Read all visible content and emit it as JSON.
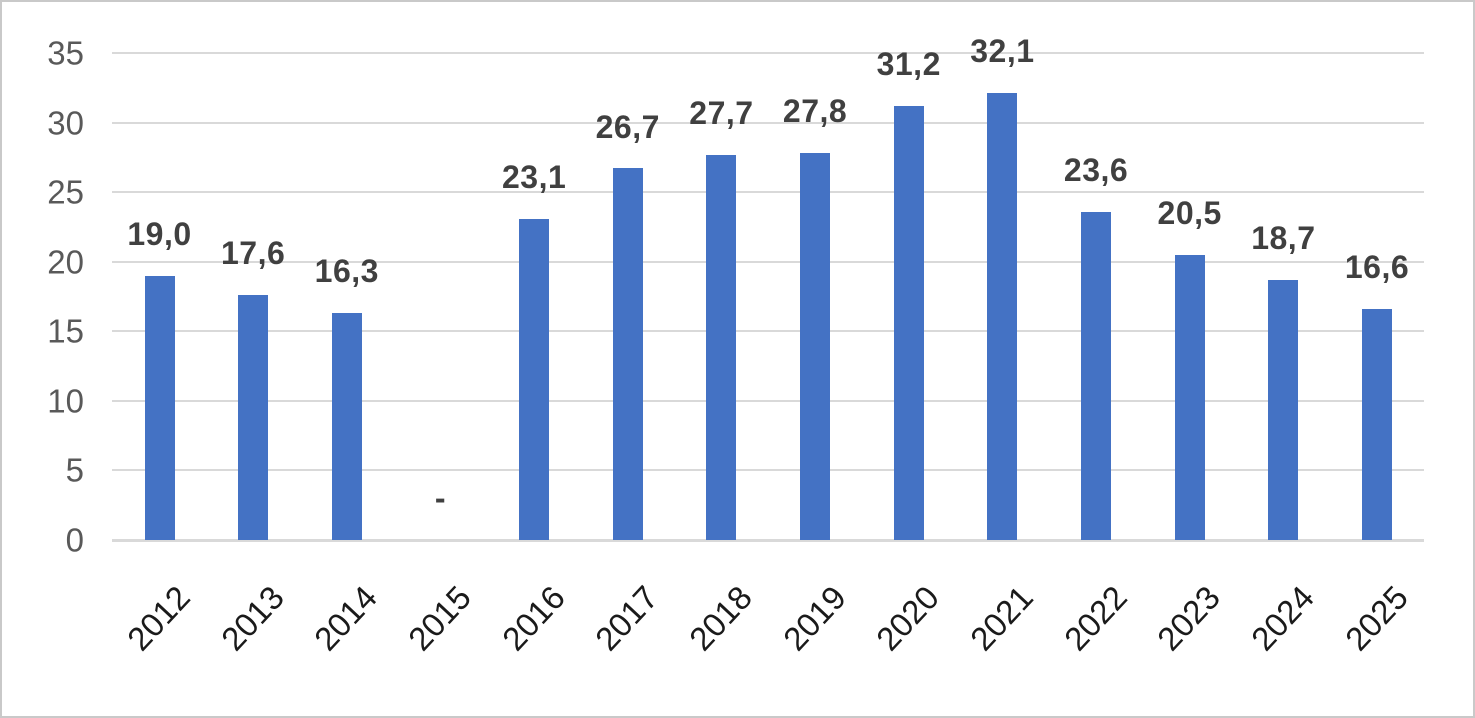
{
  "chart_data": {
    "type": "bar",
    "title": "",
    "xlabel": "",
    "ylabel": "",
    "categories": [
      "2012",
      "2013",
      "2014",
      "2015",
      "2016",
      "2017",
      "2018",
      "2019",
      "2020",
      "2021",
      "2022",
      "2023",
      "2024",
      "2025"
    ],
    "values": [
      19.0,
      17.6,
      16.3,
      null,
      23.1,
      26.7,
      27.7,
      27.8,
      31.2,
      32.1,
      23.6,
      20.5,
      18.7,
      16.6
    ],
    "data_labels": [
      "19,0",
      "17,6",
      "16,3",
      "-",
      "23,1",
      "26,7",
      "27,7",
      "27,8",
      "31,2",
      "32,1",
      "23,6",
      "20,5",
      "18,7",
      "16,6"
    ],
    "decimal_separator": ",",
    "y_ticks": [
      0,
      5,
      10,
      15,
      20,
      25,
      30,
      35
    ],
    "ylim": [
      0,
      35
    ],
    "grid": true,
    "legend_position": "none",
    "colors": {
      "bar": "#4472C4",
      "gridline": "#D9D9D9",
      "axis_text": "#595959",
      "data_label_text": "#404040",
      "category_text": "#1a1a1a",
      "frame_border": "#C9C9C9",
      "background": "#FFFFFF"
    }
  }
}
